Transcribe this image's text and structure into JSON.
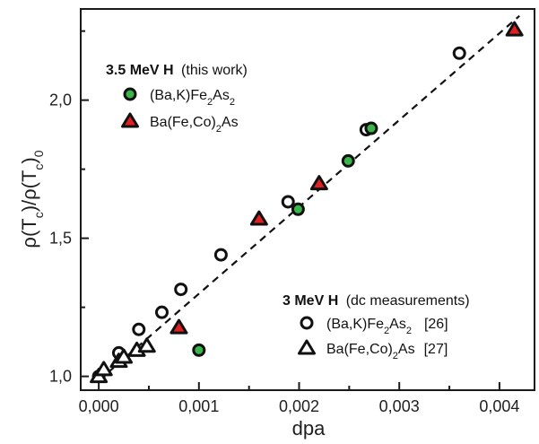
{
  "chart_data": {
    "type": "scatter",
    "xlabel": "dpa",
    "ylabel": "ρ(Tc)/ρ(Tc)0",
    "xlim": [
      -0.00018,
      0.00435
    ],
    "ylim": [
      0.95,
      2.33
    ],
    "x_ticks": [
      0.0,
      0.001,
      0.002,
      0.003,
      0.004
    ],
    "x_tick_labels": [
      "0,000",
      "0,001",
      "0,002",
      "0,003",
      "0,004"
    ],
    "y_ticks": [
      1.0,
      1.5,
      2.0
    ],
    "y_tick_labels": [
      "1,0",
      "1,5",
      "2,0"
    ],
    "grid": false,
    "fit_line": {
      "style": "dashed",
      "color": "#111111",
      "x": [
        0.0,
        0.0042
      ],
      "y": [
        0.985,
        2.305
      ]
    },
    "series": [
      {
        "name": "(Ba,K)Fe2As2",
        "group": "3.5 MeV H (this work)",
        "marker": "circle",
        "fill": "#39b54a",
        "x": [
          0.00199,
          0.00249,
          0.00272,
          0.001
        ],
        "y": [
          1.605,
          1.78,
          1.898,
          1.095
        ]
      },
      {
        "name": "Ba(Fe,Co)2As",
        "group": "3.5 MeV H (this work)",
        "marker": "triangle",
        "fill": "#e02020",
        "x": [
          0.0008,
          0.0016,
          0.0022,
          0.00415
        ],
        "y": [
          1.177,
          1.57,
          1.698,
          2.255
        ]
      },
      {
        "name": "(Ba,K)Fe2As2",
        "group": "3 MeV H (dc measurements)",
        "marker": "circle",
        "fill": "#ffffff",
        "x": [
          0.0,
          0.0002,
          0.0004,
          0.00063,
          0.00082,
          0.00122,
          0.00189,
          0.00267,
          0.0036
        ],
        "y": [
          1.0,
          1.085,
          1.17,
          1.232,
          1.315,
          1.44,
          1.632,
          1.893,
          2.17
        ]
      },
      {
        "name": "Ba(Fe,Co)2As",
        "group": "3 MeV H (dc measurements)",
        "marker": "triangle",
        "fill": "#ffffff",
        "x": [
          0.0,
          5e-05,
          0.0002,
          0.00025,
          0.00038,
          0.00048
        ],
        "y": [
          1.0,
          1.025,
          1.055,
          1.07,
          1.095,
          1.11
        ]
      }
    ],
    "legend": {
      "top_group": {
        "title_bold": "3.5 MeV H",
        "title_rest": "(this work)",
        "items": [
          {
            "marker": "circle",
            "fill": "#39b54a",
            "label_pre": "(Ba,K)Fe",
            "sub1": "2",
            "label_mid": "As",
            "sub2": "2",
            "label_post": ""
          },
          {
            "marker": "triangle",
            "fill": "#e02020",
            "label_pre": "Ba(Fe,Co)",
            "sub1": "2",
            "label_mid": "As",
            "sub2": "",
            "label_post": ""
          }
        ]
      },
      "bottom_group": {
        "title_bold": "3 MeV H",
        "title_rest": "(dc measurements)",
        "items": [
          {
            "marker": "circle",
            "fill": "#ffffff",
            "label_pre": "(Ba,K)Fe",
            "sub1": "2",
            "label_mid": "As",
            "sub2": "2",
            "label_post": "[26]"
          },
          {
            "marker": "triangle",
            "fill": "#ffffff",
            "label_pre": "Ba(Fe,Co)",
            "sub1": "2",
            "label_mid": "As",
            "sub2": "",
            "label_post": "[27]"
          }
        ]
      }
    }
  }
}
